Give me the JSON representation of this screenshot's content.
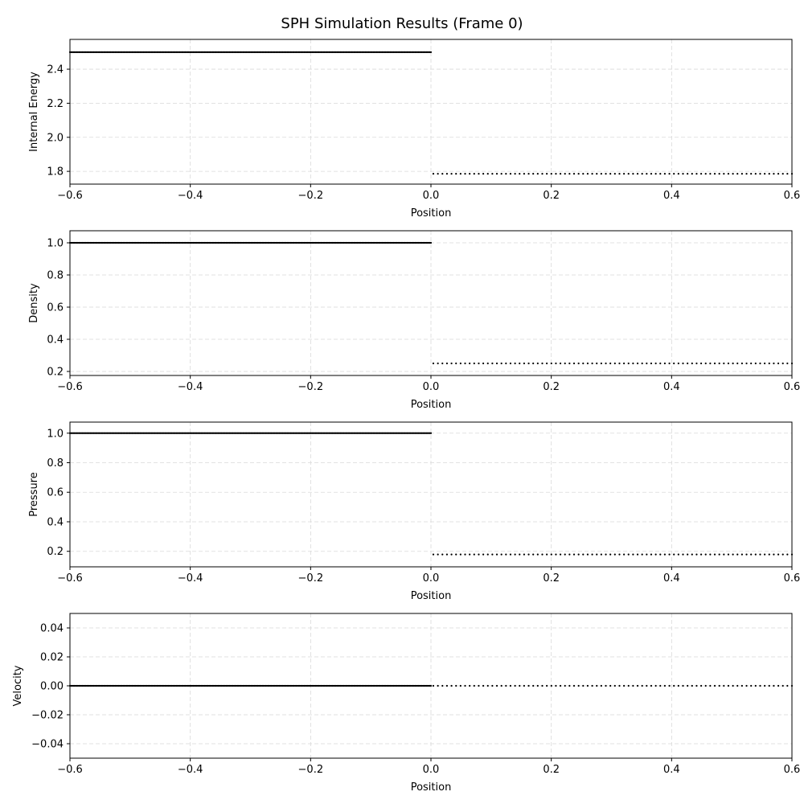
{
  "figure": {
    "title": "SPH Simulation Results (Frame 0)"
  },
  "colors": {
    "points": "#000000",
    "grid": "#d9d9d9",
    "frame": "#000000"
  },
  "chart_data": [
    {
      "type": "scatter",
      "xlabel": "Position",
      "ylabel": "Internal Energy",
      "xlim": [
        -0.6,
        0.6
      ],
      "ylim": [
        1.725,
        2.575
      ],
      "grid": true,
      "xticks": [
        -0.6,
        -0.4,
        -0.2,
        0.0,
        0.2,
        0.4,
        0.6
      ],
      "xtick_labels": [
        "−0.6",
        "−0.4",
        "−0.2",
        "0.0",
        "0.2",
        "0.4",
        "0.6"
      ],
      "yticks": [
        1.8,
        2.0,
        2.2,
        2.4
      ],
      "ytick_labels": [
        "1.8",
        "2.0",
        "2.2",
        "2.4"
      ],
      "series": [
        {
          "x_start": -0.6,
          "x_end": 0.0,
          "count": 320,
          "y": 2.5
        },
        {
          "x_start": 0.004,
          "x_end": 0.6,
          "count": 80,
          "y": 1.7857
        }
      ]
    },
    {
      "type": "scatter",
      "xlabel": "Position",
      "ylabel": "Density",
      "xlim": [
        -0.6,
        0.6
      ],
      "ylim": [
        0.175,
        1.075
      ],
      "grid": true,
      "xticks": [
        -0.6,
        -0.4,
        -0.2,
        0.0,
        0.2,
        0.4,
        0.6
      ],
      "xtick_labels": [
        "−0.6",
        "−0.4",
        "−0.2",
        "0.0",
        "0.2",
        "0.4",
        "0.6"
      ],
      "yticks": [
        0.2,
        0.4,
        0.6,
        0.8,
        1.0
      ],
      "ytick_labels": [
        "0.2",
        "0.4",
        "0.6",
        "0.8",
        "1.0"
      ],
      "series": [
        {
          "x_start": -0.6,
          "x_end": 0.0,
          "count": 320,
          "y": 1.0
        },
        {
          "x_start": 0.004,
          "x_end": 0.6,
          "count": 80,
          "y": 0.25
        }
      ]
    },
    {
      "type": "scatter",
      "xlabel": "Position",
      "ylabel": "Pressure",
      "xlim": [
        -0.6,
        0.6
      ],
      "ylim": [
        0.095,
        1.075
      ],
      "grid": true,
      "xticks": [
        -0.6,
        -0.4,
        -0.2,
        0.0,
        0.2,
        0.4,
        0.6
      ],
      "xtick_labels": [
        "−0.6",
        "−0.4",
        "−0.2",
        "0.0",
        "0.2",
        "0.4",
        "0.6"
      ],
      "yticks": [
        0.2,
        0.4,
        0.6,
        0.8,
        1.0
      ],
      "ytick_labels": [
        "0.2",
        "0.4",
        "0.6",
        "0.8",
        "1.0"
      ],
      "series": [
        {
          "x_start": -0.6,
          "x_end": 0.0,
          "count": 320,
          "y": 1.0
        },
        {
          "x_start": 0.004,
          "x_end": 0.6,
          "count": 80,
          "y": 0.1786
        }
      ]
    },
    {
      "type": "scatter",
      "xlabel": "Position",
      "ylabel": "Velocity",
      "xlim": [
        -0.6,
        0.6
      ],
      "ylim": [
        -0.05,
        0.05
      ],
      "grid": true,
      "xticks": [
        -0.6,
        -0.4,
        -0.2,
        0.0,
        0.2,
        0.4,
        0.6
      ],
      "xtick_labels": [
        "−0.6",
        "−0.4",
        "−0.2",
        "0.0",
        "0.2",
        "0.4",
        "0.6"
      ],
      "yticks": [
        -0.04,
        -0.02,
        0.0,
        0.02,
        0.04
      ],
      "ytick_labels": [
        "−0.04",
        "−0.02",
        "0.00",
        "0.02",
        "0.04"
      ],
      "series": [
        {
          "x_start": -0.6,
          "x_end": 0.0,
          "count": 320,
          "y": 0.0
        },
        {
          "x_start": 0.004,
          "x_end": 0.6,
          "count": 80,
          "y": 0.0
        }
      ]
    }
  ]
}
